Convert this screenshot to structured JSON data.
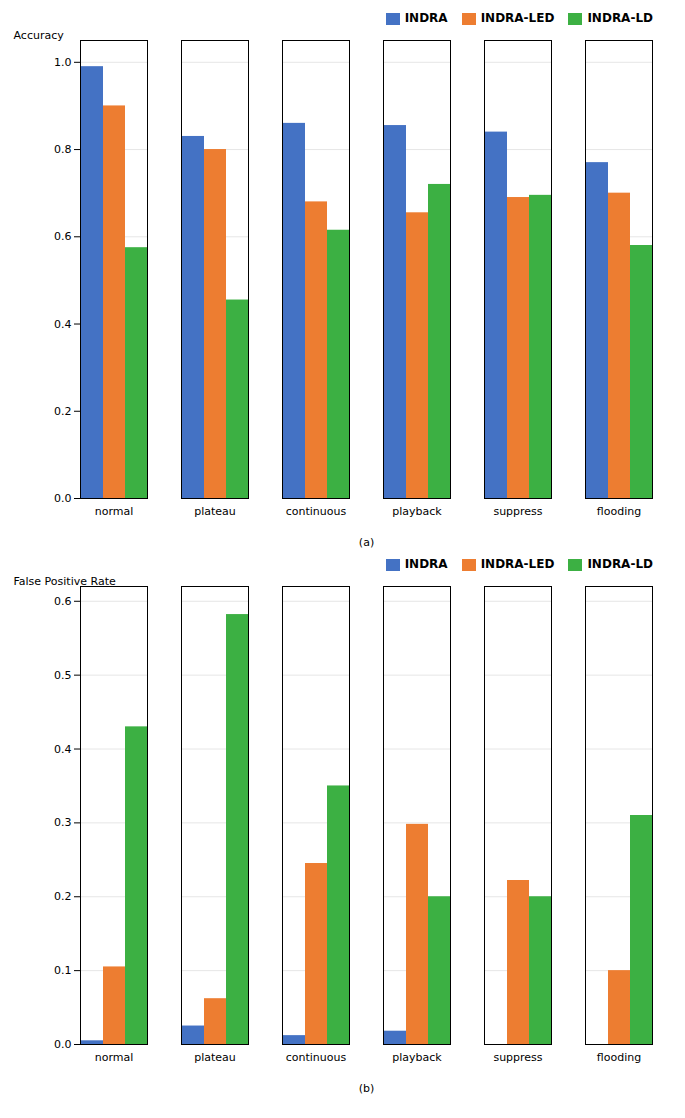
{
  "chart_data": [
    {
      "type": "bar",
      "categories": [
        "normal",
        "plateau",
        "continuous",
        "playback",
        "suppress",
        "flooding"
      ],
      "series": [
        {
          "name": "INDRA",
          "color": "#4472C4",
          "values": [
            0.99,
            0.83,
            0.86,
            0.855,
            0.84,
            0.77
          ]
        },
        {
          "name": "INDRA-LED",
          "color": "#ED7D31",
          "values": [
            0.9,
            0.8,
            0.68,
            0.655,
            0.69,
            0.7
          ]
        },
        {
          "name": "INDRA-LD",
          "color": "#3CB043",
          "values": [
            0.575,
            0.455,
            0.615,
            0.72,
            0.695,
            0.58
          ]
        }
      ],
      "ylabel": "Accuracy",
      "xlabel": "(a)",
      "ylim": [
        0.0,
        1.05
      ],
      "yticks": [
        {
          "value": 0.0,
          "label": "0.0"
        },
        0.2,
        0.4,
        0.6,
        0.8,
        {
          "value": 1.0,
          "label": "1.0"
        }
      ],
      "grid": true,
      "legend": "upper right"
    },
    {
      "type": "bar",
      "categories": [
        "normal",
        "plateau",
        "continuous",
        "playback",
        "suppress",
        "flooding"
      ],
      "series": [
        {
          "name": "INDRA",
          "color": "#4472C4",
          "values": [
            0.005,
            0.025,
            0.012,
            0.018,
            0.0,
            0.0
          ]
        },
        {
          "name": "INDRA-LED",
          "color": "#ED7D31",
          "values": [
            0.105,
            0.062,
            0.245,
            0.298,
            0.222,
            0.1
          ]
        },
        {
          "name": "INDRA-LD",
          "color": "#3CB043",
          "values": [
            0.43,
            0.582,
            0.35,
            0.2,
            0.2,
            0.31
          ]
        }
      ],
      "ylabel": "False Positive Rate",
      "xlabel": "(b)",
      "ylim": [
        0.0,
        0.62
      ],
      "yticks": [
        {
          "value": 0.0,
          "label": "0.0"
        },
        0.1,
        0.2,
        0.3,
        0.4,
        0.5,
        0.6
      ],
      "grid": true,
      "legend": "upper right"
    }
  ]
}
